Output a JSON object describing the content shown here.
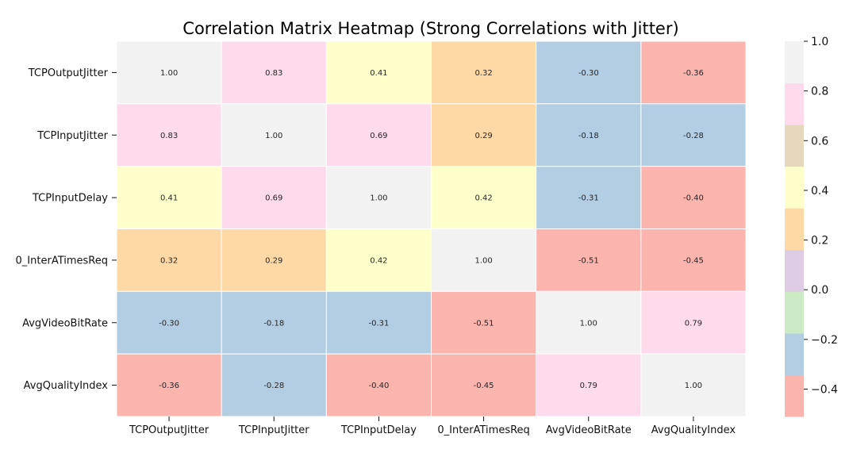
{
  "chart_data": {
    "type": "heatmap",
    "title": "Correlation Matrix Heatmap (Strong Correlations with Jitter)",
    "xlabel": "",
    "ylabel": "",
    "labels": [
      "TCPOutputJitter",
      "TCPInputJitter",
      "TCPInputDelay",
      "0_InterATimesReq",
      "AvgVideoBitRate",
      "AvgQualityIndex"
    ],
    "matrix": [
      [
        1.0,
        0.83,
        0.41,
        0.32,
        -0.3,
        -0.36
      ],
      [
        0.83,
        1.0,
        0.69,
        0.29,
        -0.18,
        -0.28
      ],
      [
        0.41,
        0.69,
        1.0,
        0.42,
        -0.31,
        -0.4
      ],
      [
        0.32,
        0.29,
        0.42,
        1.0,
        -0.51,
        -0.45
      ],
      [
        -0.3,
        -0.18,
        -0.31,
        -0.51,
        1.0,
        0.79
      ],
      [
        -0.36,
        -0.28,
        -0.4,
        -0.45,
        0.79,
        1.0
      ]
    ],
    "value_format": "2 decimals",
    "colorscale": {
      "name": "Pastel1",
      "vmin": -0.51,
      "vmax": 1.0,
      "colors": [
        "#fbb4ae",
        "#b3cde3",
        "#ccebc5",
        "#decbe4",
        "#fed9a6",
        "#ffffcc",
        "#e5d8bd",
        "#fddaec",
        "#f2f2f2"
      ]
    },
    "colorbar": {
      "ticks": [
        1.0,
        0.8,
        0.6,
        0.4,
        0.2,
        0.0,
        -0.2,
        -0.4
      ],
      "tick_labels": [
        "1.0",
        "0.8",
        "0.6",
        "0.4",
        "0.2",
        "0.0",
        "−0.2",
        "−0.4"
      ],
      "position": "right"
    },
    "grid": false,
    "cell_borders": "white"
  }
}
